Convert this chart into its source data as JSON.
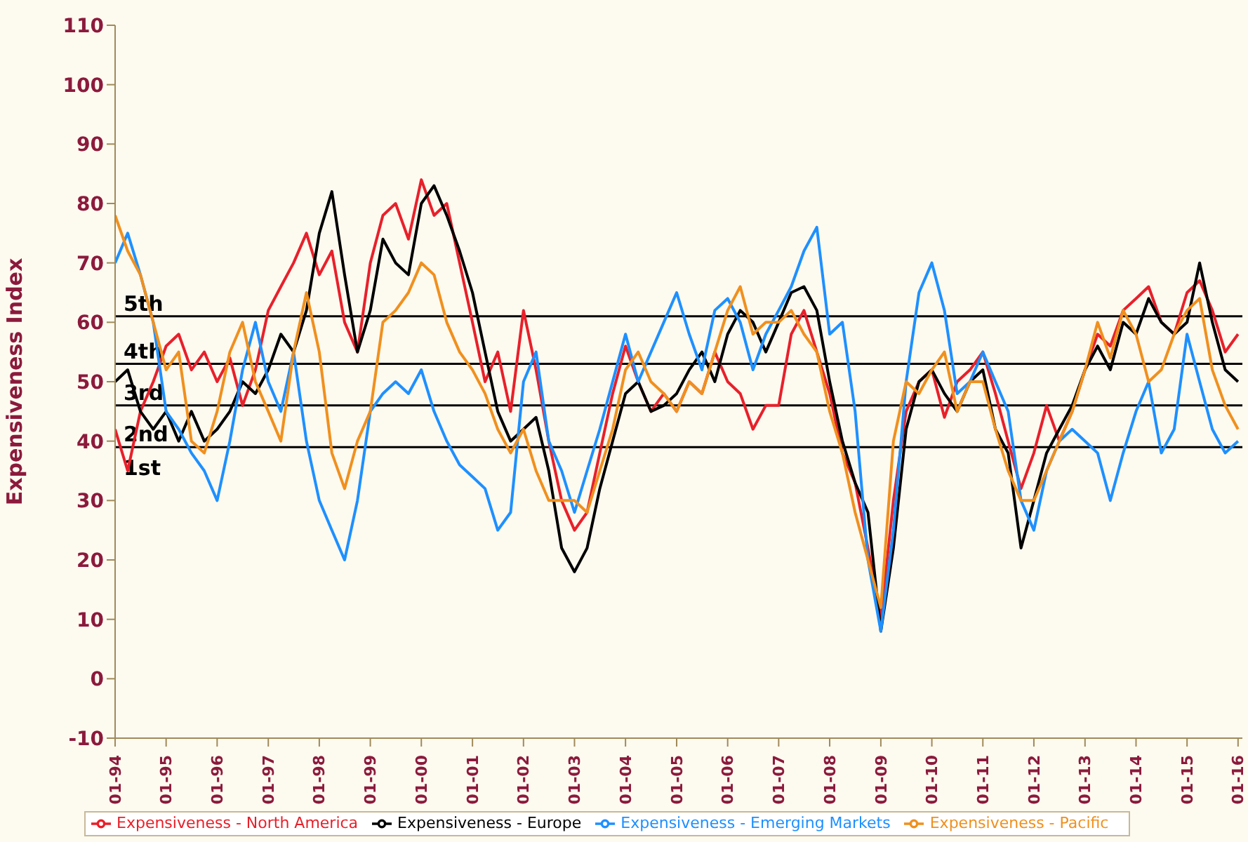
{
  "chart_data": {
    "type": "line",
    "ylabel": "Expensiveness Index",
    "x": [
      "1994-01",
      "1994-04",
      "1994-07",
      "1994-10",
      "1995-01",
      "1995-04",
      "1995-07",
      "1995-10",
      "1996-01",
      "1996-04",
      "1996-07",
      "1996-10",
      "1997-01",
      "1997-04",
      "1997-07",
      "1997-10",
      "1998-01",
      "1998-04",
      "1998-07",
      "1998-10",
      "1999-01",
      "1999-04",
      "1999-07",
      "1999-10",
      "2000-01",
      "2000-04",
      "2000-07",
      "2000-10",
      "2001-01",
      "2001-04",
      "2001-07",
      "2001-10",
      "2002-01",
      "2002-04",
      "2002-07",
      "2002-10",
      "2003-01",
      "2003-04",
      "2003-07",
      "2003-10",
      "2004-01",
      "2004-04",
      "2004-07",
      "2004-10",
      "2005-01",
      "2005-04",
      "2005-07",
      "2005-10",
      "2006-01",
      "2006-04",
      "2006-07",
      "2006-10",
      "2007-01",
      "2007-04",
      "2007-07",
      "2007-10",
      "2008-01",
      "2008-04",
      "2008-07",
      "2008-10",
      "2009-01",
      "2009-04",
      "2009-07",
      "2009-10",
      "2010-01",
      "2010-04",
      "2010-07",
      "2010-10",
      "2011-01",
      "2011-04",
      "2011-07",
      "2011-10",
      "2012-01",
      "2012-04",
      "2012-07",
      "2012-10",
      "2013-01",
      "2013-04",
      "2013-07",
      "2013-10",
      "2014-01",
      "2014-04",
      "2014-07",
      "2014-10",
      "2015-01",
      "2015-04",
      "2015-07",
      "2015-10",
      "2016-01"
    ],
    "series": [
      {
        "name": "Expensiveness - North America",
        "color": "#e8202a",
        "values": [
          42,
          35,
          45,
          50,
          56,
          58,
          52,
          55,
          50,
          54,
          46,
          52,
          62,
          66,
          70,
          75,
          68,
          72,
          60,
          55,
          70,
          78,
          80,
          74,
          84,
          78,
          80,
          70,
          60,
          50,
          55,
          45,
          62,
          52,
          40,
          30,
          25,
          28,
          38,
          48,
          56,
          50,
          45,
          48,
          45,
          50,
          48,
          55,
          50,
          48,
          42,
          46,
          46,
          58,
          62,
          55,
          48,
          38,
          33,
          22,
          10,
          30,
          45,
          50,
          52,
          44,
          50,
          52,
          55,
          48,
          40,
          32,
          38,
          46,
          40,
          45,
          52,
          58,
          56,
          62,
          64,
          66,
          60,
          58,
          65,
          67,
          62,
          55,
          58
        ]
      },
      {
        "name": "Expensiveness - Europe",
        "color": "#000000",
        "values": [
          50,
          52,
          45,
          42,
          45,
          40,
          45,
          40,
          42,
          45,
          50,
          48,
          52,
          58,
          55,
          62,
          75,
          82,
          68,
          55,
          62,
          74,
          70,
          68,
          80,
          83,
          78,
          72,
          65,
          55,
          45,
          40,
          42,
          44,
          35,
          22,
          18,
          22,
          32,
          40,
          48,
          50,
          45,
          46,
          48,
          52,
          55,
          50,
          58,
          62,
          60,
          55,
          60,
          65,
          66,
          62,
          50,
          40,
          33,
          28,
          8,
          22,
          42,
          50,
          52,
          48,
          45,
          50,
          52,
          42,
          38,
          22,
          30,
          38,
          42,
          46,
          52,
          56,
          52,
          60,
          58,
          64,
          60,
          58,
          60,
          70,
          60,
          52,
          50
        ]
      },
      {
        "name": "Expensiveness - Emerging Markets",
        "color": "#1e90ff",
        "values": [
          70,
          75,
          68,
          60,
          45,
          42,
          38,
          35,
          30,
          40,
          52,
          60,
          50,
          45,
          55,
          40,
          30,
          25,
          20,
          30,
          45,
          48,
          50,
          48,
          52,
          45,
          40,
          36,
          34,
          32,
          25,
          28,
          50,
          55,
          40,
          35,
          28,
          35,
          42,
          50,
          58,
          50,
          55,
          60,
          65,
          58,
          52,
          62,
          64,
          60,
          52,
          58,
          62,
          66,
          72,
          76,
          58,
          60,
          45,
          20,
          8,
          25,
          50,
          65,
          70,
          62,
          48,
          50,
          55,
          50,
          45,
          30,
          25,
          35,
          40,
          42,
          40,
          38,
          30,
          38,
          45,
          50,
          38,
          42,
          58,
          50,
          42,
          38,
          40
        ]
      },
      {
        "name": "Expensiveness - Pacific",
        "color": "#f0901e",
        "values": [
          78,
          72,
          68,
          60,
          52,
          55,
          40,
          38,
          45,
          55,
          60,
          50,
          45,
          40,
          55,
          65,
          55,
          38,
          32,
          40,
          45,
          60,
          62,
          65,
          70,
          68,
          60,
          55,
          52,
          48,
          42,
          38,
          42,
          35,
          30,
          30,
          30,
          28,
          35,
          42,
          52,
          55,
          50,
          48,
          45,
          50,
          48,
          55,
          62,
          66,
          58,
          60,
          60,
          62,
          58,
          55,
          45,
          38,
          28,
          20,
          12,
          40,
          50,
          48,
          52,
          55,
          45,
          50,
          50,
          42,
          35,
          30,
          30,
          35,
          40,
          45,
          52,
          60,
          54,
          62,
          58,
          50,
          52,
          58,
          62,
          64,
          52,
          46,
          42
        ]
      }
    ],
    "xlim": [
      "1994-01",
      "2016-02"
    ],
    "xticks": [
      {
        "value": "1994-01",
        "label": "01-94"
      },
      {
        "value": "1995-01",
        "label": "01-95"
      },
      {
        "value": "1996-01",
        "label": "01-96"
      },
      {
        "value": "1997-01",
        "label": "01-97"
      },
      {
        "value": "1998-01",
        "label": "01-98"
      },
      {
        "value": "1999-01",
        "label": "01-99"
      },
      {
        "value": "2000-01",
        "label": "01-00"
      },
      {
        "value": "2001-01",
        "label": "01-01"
      },
      {
        "value": "2002-01",
        "label": "01-02"
      },
      {
        "value": "2003-01",
        "label": "01-03"
      },
      {
        "value": "2004-01",
        "label": "01-04"
      },
      {
        "value": "2005-01",
        "label": "01-05"
      },
      {
        "value": "2006-01",
        "label": "01-06"
      },
      {
        "value": "2007-01",
        "label": "01-07"
      },
      {
        "value": "2008-01",
        "label": "01-08"
      },
      {
        "value": "2009-01",
        "label": "01-09"
      },
      {
        "value": "2010-01",
        "label": "01-10"
      },
      {
        "value": "2011-01",
        "label": "01-11"
      },
      {
        "value": "2012-01",
        "label": "01-12"
      },
      {
        "value": "2013-01",
        "label": "01-13"
      },
      {
        "value": "2014-01",
        "label": "01-14"
      },
      {
        "value": "2015-01",
        "label": "01-15"
      },
      {
        "value": "2016-01",
        "label": "01-16"
      }
    ],
    "ylim": [
      -10,
      110
    ],
    "yticks": [
      -10,
      0,
      10,
      20,
      30,
      40,
      50,
      60,
      70,
      80,
      90,
      100,
      110
    ],
    "ref_lines": [
      {
        "axis": "y",
        "value": 61,
        "label": "5th",
        "color": "#000000"
      },
      {
        "axis": "y",
        "value": 53,
        "label": "4th",
        "color": "#000000"
      },
      {
        "axis": "y",
        "value": 46,
        "label": "3rd",
        "color": "#000000"
      },
      {
        "axis": "y",
        "value": 39,
        "label": "2nd",
        "color": "#000000"
      }
    ],
    "annotations": [
      "1st"
    ],
    "grid": false,
    "legend": "bottom"
  }
}
